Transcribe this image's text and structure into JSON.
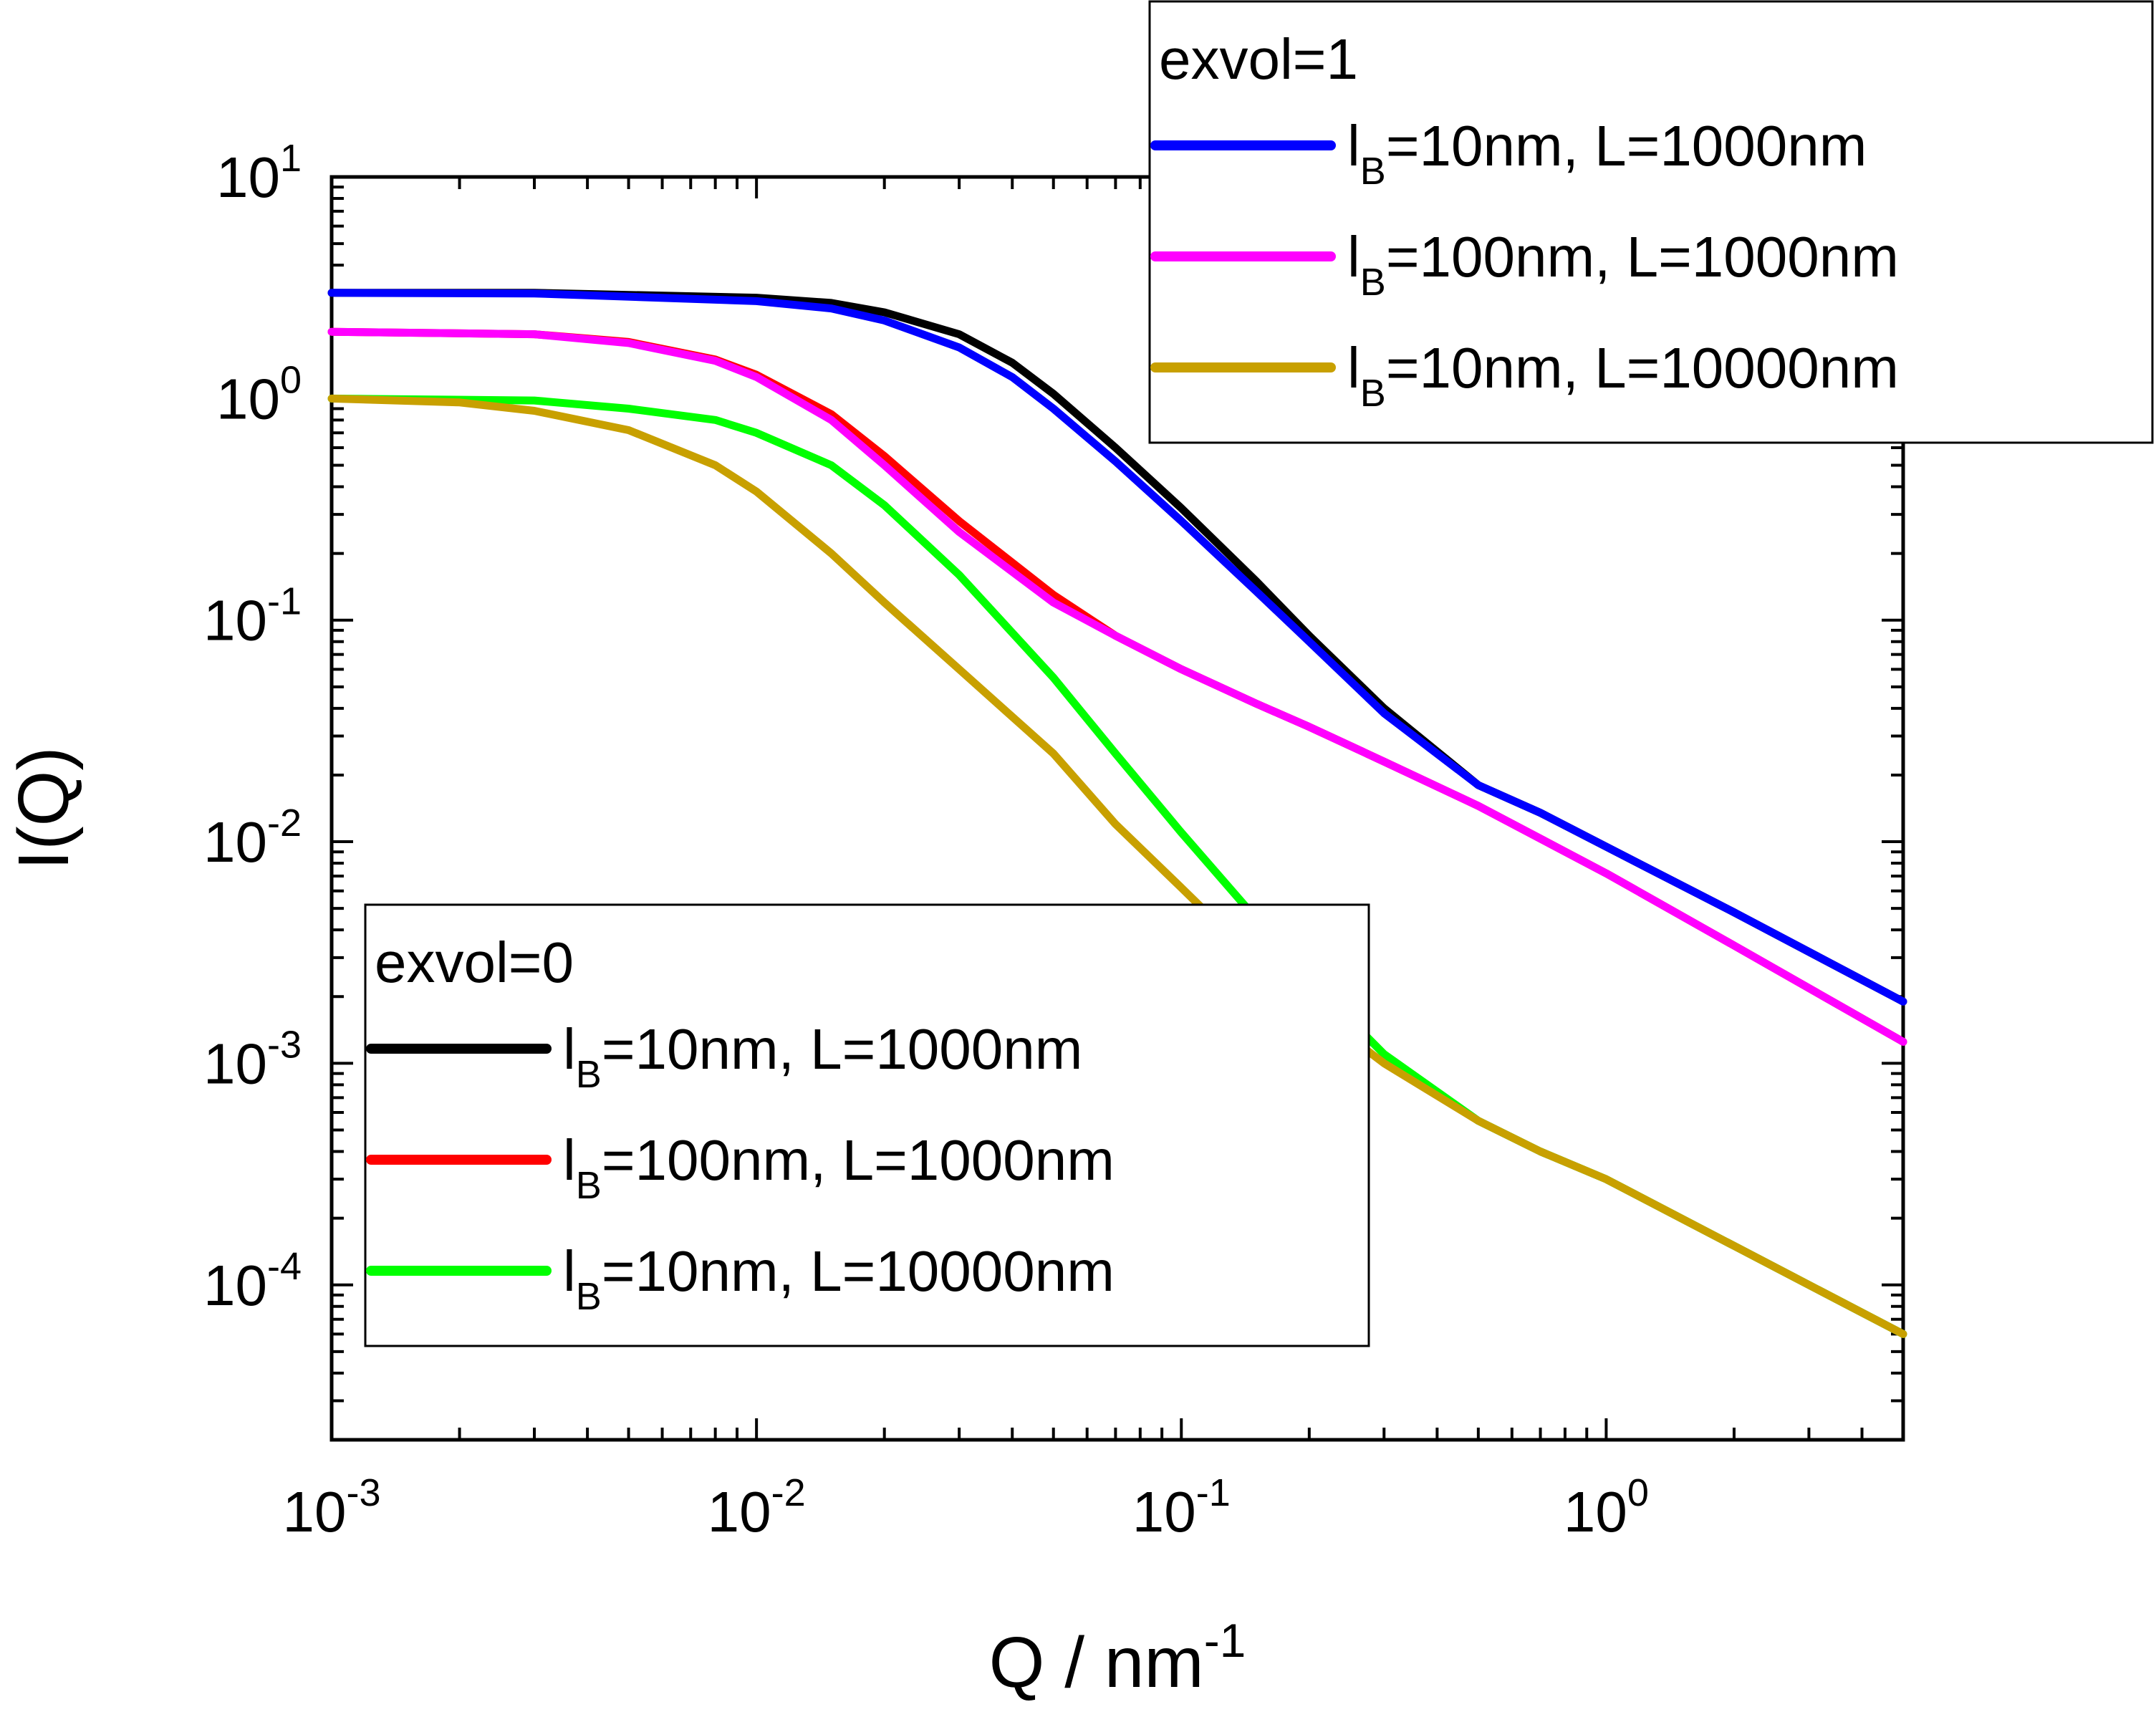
{
  "chart_data": {
    "type": "line",
    "xlabel": "Q / nm",
    "xlabel_sup": "-1",
    "ylabel": "I(Q)",
    "x_scale": "log",
    "y_scale": "log",
    "xlim": [
      0.001,
      5
    ],
    "ylim": [
      2e-05,
      10
    ],
    "x_ticks": [
      {
        "value": 0.001,
        "base": "10",
        "exp": "-3"
      },
      {
        "value": 0.01,
        "base": "10",
        "exp": "-2"
      },
      {
        "value": 0.1,
        "base": "10",
        "exp": "-1"
      },
      {
        "value": 1,
        "base": "10",
        "exp": "0"
      }
    ],
    "y_ticks": [
      {
        "value": 10,
        "base": "10",
        "exp": "1"
      },
      {
        "value": 1,
        "base": "10",
        "exp": "0"
      },
      {
        "value": 0.1,
        "base": "10",
        "exp": "-1"
      },
      {
        "value": 0.01,
        "base": "10",
        "exp": "-2"
      },
      {
        "value": 0.001,
        "base": "10",
        "exp": "-3"
      },
      {
        "value": 0.0001,
        "base": "10",
        "exp": "-4"
      }
    ],
    "grid": false,
    "legends": [
      {
        "title": "exvol=1",
        "placement": "top-right",
        "entries": [
          {
            "series": 3,
            "label_pre": "l",
            "label_sub": "B",
            "label_post": "=10nm,   L=1000nm"
          },
          {
            "series": 4,
            "label_pre": "l",
            "label_sub": "B",
            "label_post": "=100nm, L=1000nm"
          },
          {
            "series": 5,
            "label_pre": "l",
            "label_sub": "B",
            "label_post": "=10nm,   L=10000nm"
          }
        ]
      },
      {
        "title": "exvol=0",
        "placement": "bottom-left",
        "entries": [
          {
            "series": 0,
            "label_pre": "l",
            "label_sub": "B",
            "label_post": "=10nm,   L=1000nm"
          },
          {
            "series": 1,
            "label_pre": "l",
            "label_sub": "B",
            "label_post": "=100nm, L=1000nm"
          },
          {
            "series": 2,
            "label_pre": "l",
            "label_sub": "B",
            "label_post": "=10nm,   L=10000nm"
          }
        ]
      }
    ],
    "series": [
      {
        "color": "#000000",
        "x": [
          0.001,
          0.003,
          0.01,
          0.015,
          0.02,
          0.03,
          0.04,
          0.05,
          0.07,
          0.1,
          0.15,
          0.2,
          0.3,
          0.5,
          0.7,
          1,
          2,
          5
        ],
        "y": [
          3.0,
          3.0,
          2.85,
          2.7,
          2.45,
          1.95,
          1.45,
          1.05,
          0.6,
          0.32,
          0.15,
          0.085,
          0.04,
          0.018,
          0.0135,
          0.0095,
          0.0048,
          0.0019
        ]
      },
      {
        "color": "#ff0000",
        "x": [
          0.001,
          0.003,
          0.005,
          0.008,
          0.01,
          0.015,
          0.02,
          0.03,
          0.05,
          0.07,
          0.1,
          0.15,
          0.2,
          0.3,
          0.5,
          1,
          2,
          5
        ],
        "y": [
          2.0,
          1.95,
          1.8,
          1.5,
          1.28,
          0.85,
          0.55,
          0.28,
          0.13,
          0.085,
          0.06,
          0.042,
          0.033,
          0.023,
          0.0145,
          0.0072,
          0.0034,
          0.00125
        ]
      },
      {
        "color": "#00ff00",
        "x": [
          0.001,
          0.003,
          0.005,
          0.008,
          0.01,
          0.015,
          0.02,
          0.03,
          0.05,
          0.07,
          0.1,
          0.15,
          0.2,
          0.3,
          0.5,
          0.7,
          1,
          2,
          5
        ],
        "y": [
          1.0,
          0.98,
          0.9,
          0.8,
          0.7,
          0.5,
          0.33,
          0.16,
          0.055,
          0.025,
          0.011,
          0.0045,
          0.0024,
          0.0011,
          0.00055,
          0.0004,
          0.0003,
          0.00015,
          6e-05
        ]
      },
      {
        "color": "#0000ff",
        "x": [
          0.001,
          0.003,
          0.01,
          0.015,
          0.02,
          0.03,
          0.04,
          0.05,
          0.07,
          0.1,
          0.15,
          0.2,
          0.3,
          0.5,
          0.7,
          1,
          2,
          5
        ],
        "y": [
          3.0,
          2.98,
          2.75,
          2.55,
          2.25,
          1.7,
          1.25,
          0.9,
          0.52,
          0.28,
          0.135,
          0.08,
          0.038,
          0.018,
          0.0135,
          0.0095,
          0.0048,
          0.0019
        ]
      },
      {
        "color": "#ff00ff",
        "x": [
          0.001,
          0.003,
          0.005,
          0.008,
          0.01,
          0.015,
          0.02,
          0.03,
          0.05,
          0.07,
          0.1,
          0.15,
          0.2,
          0.3,
          0.5,
          1,
          2,
          5
        ],
        "y": [
          2.0,
          1.95,
          1.78,
          1.48,
          1.25,
          0.8,
          0.5,
          0.25,
          0.12,
          0.085,
          0.06,
          0.042,
          0.033,
          0.023,
          0.0145,
          0.0072,
          0.0034,
          0.00125
        ]
      },
      {
        "color": "#c8a000",
        "x": [
          0.001,
          0.002,
          0.003,
          0.005,
          0.008,
          0.01,
          0.015,
          0.02,
          0.03,
          0.05,
          0.07,
          0.1,
          0.15,
          0.2,
          0.3,
          0.5,
          0.7,
          1,
          2,
          5
        ],
        "y": [
          1.0,
          0.96,
          0.88,
          0.72,
          0.5,
          0.38,
          0.2,
          0.12,
          0.06,
          0.025,
          0.012,
          0.0062,
          0.0029,
          0.0018,
          0.001,
          0.00055,
          0.0004,
          0.0003,
          0.00015,
          6e-05
        ]
      }
    ]
  }
}
